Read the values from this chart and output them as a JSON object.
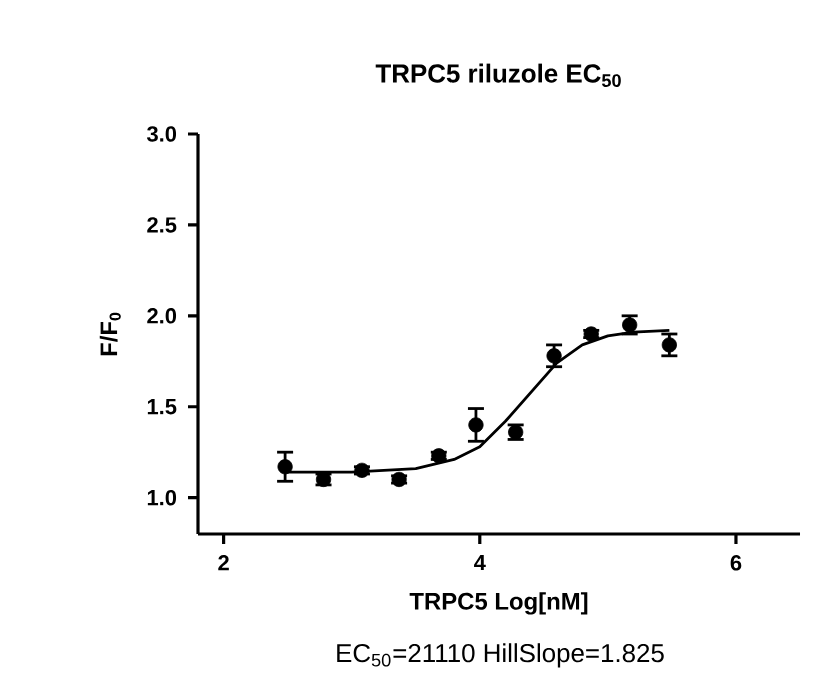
{
  "chart_data": {
    "type": "scatter",
    "title": "TRPC5  riluzole  EC$_{50}$",
    "xlabel": "TRPC5  Log[nM]",
    "ylabel": "F/F$_{0}$",
    "annotations": [
      "EC$_{50}$=21110  HillSlope=1.825"
    ],
    "xlim": [
      1.8,
      6.5
    ],
    "ylim": [
      0.8,
      3.0
    ],
    "xticks": [
      2,
      4,
      6
    ],
    "yticks": [
      {
        "value": 1,
        "label": "1.0"
      },
      {
        "value": 1.5,
        "label": "1.5"
      },
      {
        "value": 2,
        "label": "2.0"
      },
      {
        "value": 2.5,
        "label": "2.5"
      },
      {
        "value": 3,
        "label": "3.0"
      }
    ],
    "series": [
      {
        "color": "#000000",
        "marker": "circle",
        "x": [
          2.48,
          2.78,
          3.08,
          3.37,
          3.68,
          3.97,
          4.28,
          4.58,
          4.87,
          5.17,
          5.48
        ],
        "values": [
          1.17,
          1.1,
          1.15,
          1.1,
          1.23,
          1.4,
          1.36,
          1.78,
          1.9,
          1.95,
          1.84
        ],
        "errors": [
          0.08,
          0.03,
          0.02,
          0.02,
          0.02,
          0.09,
          0.04,
          0.06,
          0.02,
          0.05,
          0.06
        ]
      },
      {
        "type": "line",
        "color": "#000000",
        "marker": "none",
        "line_style": "solid",
        "x": [
          2.48,
          3.0,
          3.5,
          3.8,
          4.0,
          4.2,
          4.4,
          4.6,
          4.8,
          5.0,
          5.2,
          5.48
        ],
        "values": [
          1.14,
          1.14,
          1.16,
          1.21,
          1.28,
          1.42,
          1.58,
          1.74,
          1.84,
          1.89,
          1.91,
          1.92
        ]
      }
    ]
  }
}
